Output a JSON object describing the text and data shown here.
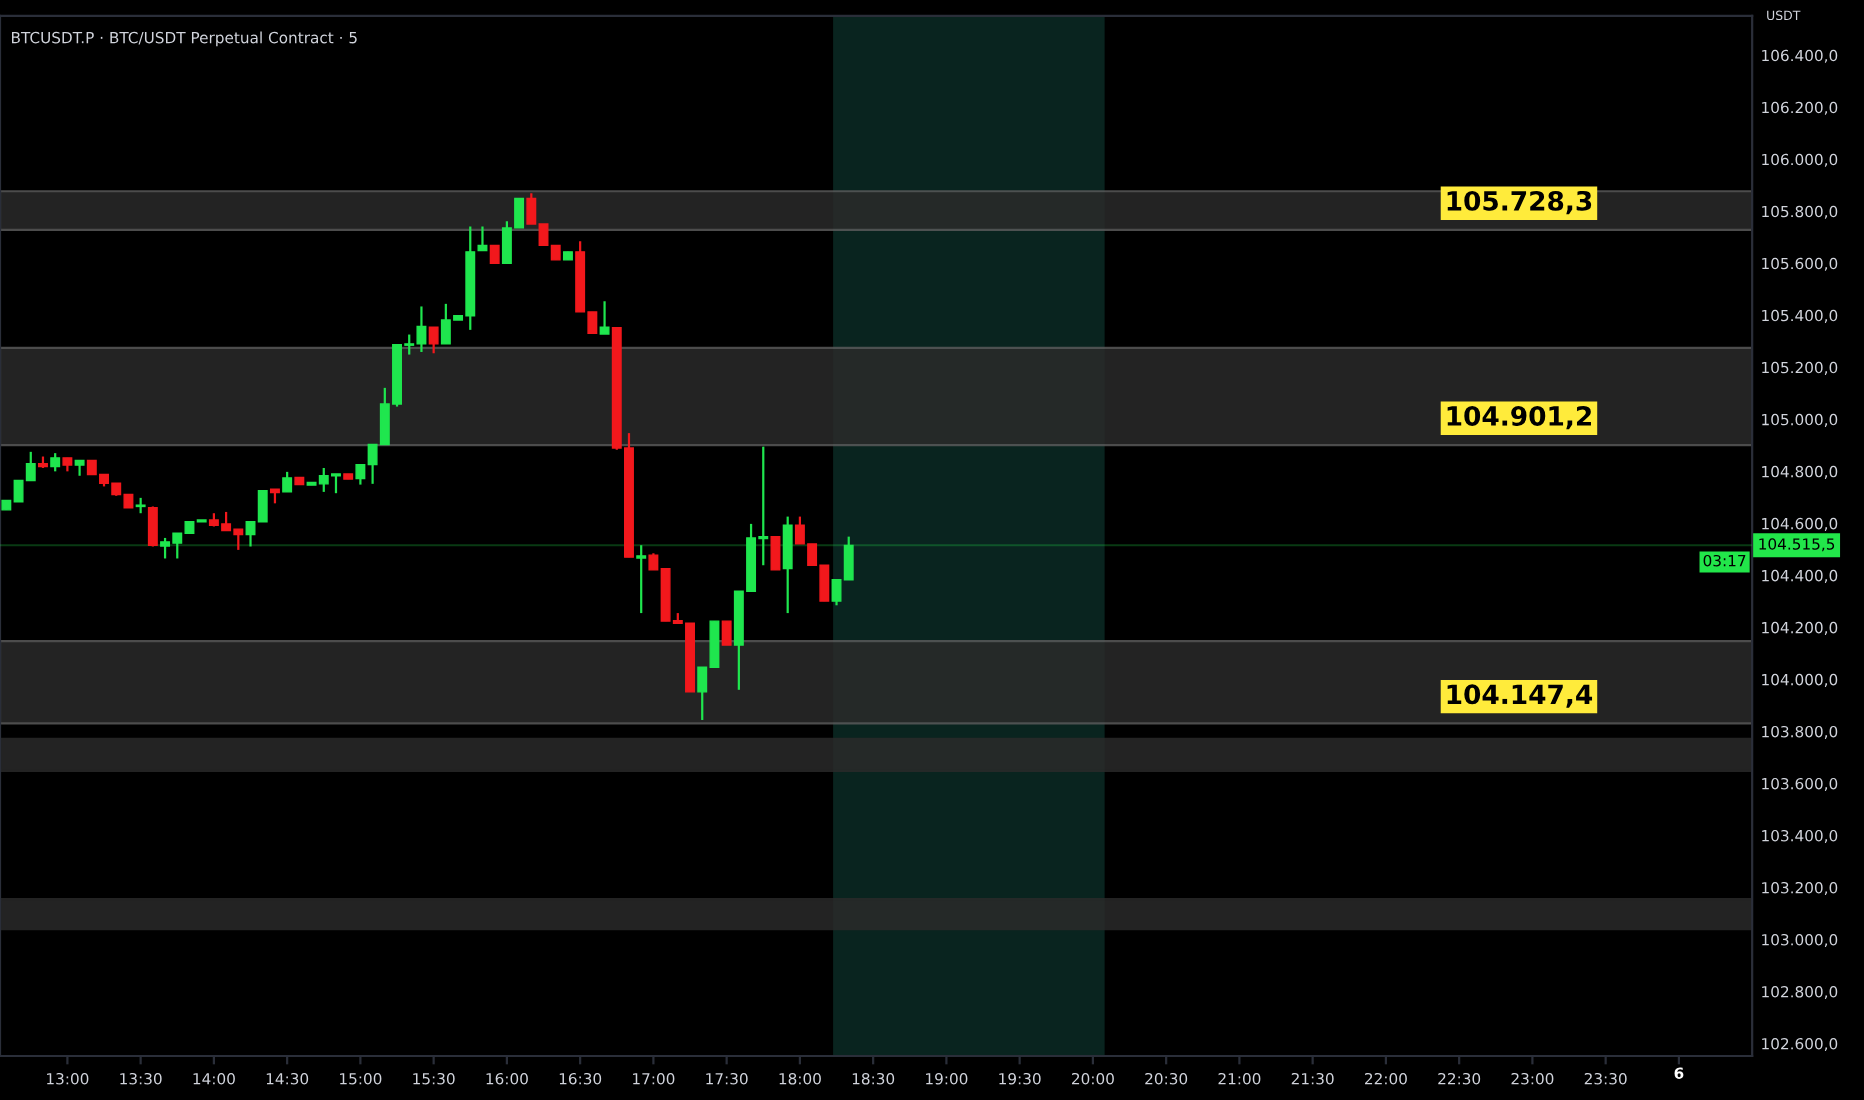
{
  "chart_data": {
    "type": "candlestick",
    "title": "BTCUSDT.P · BTC/USDT Perpetual Contract · 5",
    "x": [
      12.5833,
      12.6667,
      12.75,
      12.8333,
      12.9167,
      13,
      13.0833,
      13.1667,
      13.25,
      13.3333,
      13.4167,
      13.5,
      13.5833,
      13.6667,
      13.75,
      13.8333,
      13.9167,
      14,
      14.0833,
      14.1667,
      14.25,
      14.3333,
      14.4167,
      14.5,
      14.5833,
      14.6667,
      14.75,
      14.8333,
      14.9167,
      15,
      15.0833,
      15.1667,
      15.25,
      15.3333,
      15.4167,
      15.5,
      15.5833,
      15.6667,
      15.75,
      15.8333,
      15.9167,
      16,
      16.0833,
      16.1667,
      16.25,
      16.3333,
      16.4167,
      16.5,
      16.5833,
      16.6667,
      16.75,
      16.8333,
      16.9167,
      17,
      17.0833,
      17.1667,
      17.25,
      17.3333,
      17.4167,
      17.5,
      17.5833,
      17.6667,
      17.75,
      17.8333,
      17.9167,
      18,
      18.0833,
      18.1667,
      18.25,
      18.3333
    ],
    "ohlc": [
      [
        104652,
        104688,
        104652,
        104688
      ],
      [
        104683,
        104765,
        104683,
        104765
      ],
      [
        104765,
        104875,
        104765,
        104829
      ],
      [
        104829,
        104857,
        104813,
        104818
      ],
      [
        104818,
        104870,
        104800,
        104852
      ],
      [
        104852,
        104852,
        104800,
        104824
      ],
      [
        104824,
        104842,
        104783,
        104842
      ],
      [
        104842,
        104842,
        104788,
        104788
      ],
      [
        104788,
        104788,
        104742,
        104754
      ],
      [
        104754,
        104754,
        104706,
        104711
      ],
      [
        104711,
        104711,
        104660,
        104660
      ],
      [
        104665,
        104698,
        104639,
        104670
      ],
      [
        104660,
        104665,
        104511,
        104516
      ],
      [
        104513,
        104544,
        104465,
        104529
      ],
      [
        104524,
        104562,
        104465,
        104562
      ],
      [
        104562,
        104606,
        104562,
        104606
      ],
      [
        104606,
        104613,
        104606,
        104613
      ],
      [
        104613,
        104639,
        104588,
        104593
      ],
      [
        104598,
        104644,
        104572,
        104572
      ],
      [
        104578,
        104578,
        104498,
        104557
      ],
      [
        104557,
        104606,
        104511,
        104606
      ],
      [
        104606,
        104726,
        104606,
        104726
      ],
      [
        104731,
        104731,
        104677,
        104718
      ],
      [
        104721,
        104798,
        104721,
        104775
      ],
      [
        104777,
        104777,
        104749,
        104749
      ],
      [
        104747,
        104757,
        104747,
        104757
      ],
      [
        104752,
        104813,
        104721,
        104783
      ],
      [
        104783,
        104790,
        104716,
        104790
      ],
      [
        104790,
        104790,
        104770,
        104770
      ],
      [
        104772,
        104826,
        104749,
        104826
      ],
      [
        104826,
        104903,
        104752,
        104903
      ],
      [
        104903,
        105121,
        104903,
        105059
      ],
      [
        105059,
        105287,
        105049,
        105287
      ],
      [
        105285,
        105326,
        105249,
        105290
      ],
      [
        105290,
        105434,
        105259,
        105357
      ],
      [
        105354,
        105354,
        105254,
        105290
      ],
      [
        105290,
        105444,
        105290,
        105382
      ],
      [
        105382,
        105398,
        105382,
        105398
      ],
      [
        105398,
        105741,
        105344,
        105644
      ],
      [
        105649,
        105741,
        105649,
        105669
      ],
      [
        105669,
        105669,
        105600,
        105600
      ],
      [
        105600,
        105762,
        105600,
        105736
      ],
      [
        105736,
        105849,
        105736,
        105849
      ],
      [
        105849,
        105869,
        105751,
        105751
      ],
      [
        105751,
        105751,
        105669,
        105669
      ],
      [
        105669,
        105669,
        105613,
        105613
      ],
      [
        105613,
        105644,
        105613,
        105644
      ],
      [
        105644,
        105685,
        105413,
        105413
      ],
      [
        105413,
        105413,
        105331,
        105331
      ],
      [
        105328,
        105454,
        105328,
        105354
      ],
      [
        105352,
        105352,
        104883,
        104890
      ],
      [
        104890,
        104947,
        104470,
        104470
      ],
      [
        104467,
        104516,
        104255,
        104475
      ],
      [
        104478,
        104485,
        104421,
        104421
      ],
      [
        104426,
        104426,
        104224,
        104224
      ],
      [
        104226,
        104255,
        104216,
        104216
      ],
      [
        104216,
        104216,
        103952,
        103952
      ],
      [
        103952,
        104047,
        103844,
        104047
      ],
      [
        104047,
        104224,
        104047,
        104224
      ],
      [
        104224,
        104224,
        104132,
        104132
      ],
      [
        104132,
        104339,
        103960,
        104339
      ],
      [
        104339,
        104598,
        104339,
        104544
      ],
      [
        104542,
        104895,
        104439,
        104549
      ],
      [
        104549,
        104549,
        104421,
        104421
      ],
      [
        104426,
        104626,
        104255,
        104593
      ],
      [
        104593,
        104626,
        104521,
        104521
      ],
      [
        104521,
        104521,
        104439,
        104439
      ],
      [
        104439,
        104439,
        104301,
        104301
      ],
      [
        104301,
        104383,
        104285,
        104383
      ],
      [
        104383,
        104549,
        104383,
        104515.5
      ]
    ],
    "colors": [
      "#1fe64e",
      "#1fe64e",
      "#1fe64e",
      "#f2181c",
      "#1fe64e",
      "#f2181c",
      "#1fe64e",
      "#f2181c",
      "#f2181c",
      "#f2181c",
      "#f2181c",
      "#1fe64e",
      "#f2181c",
      "#1fe64e",
      "#1fe64e",
      "#1fe64e",
      "#1fe64e",
      "#f2181c",
      "#f2181c",
      "#f2181c",
      "#1fe64e",
      "#1fe64e",
      "#f2181c",
      "#1fe64e",
      "#f2181c",
      "#1fe64e",
      "#1fe64e",
      "#1fe64e",
      "#f2181c",
      "#1fe64e",
      "#1fe64e",
      "#1fe64e",
      "#1fe64e",
      "#1fe64e",
      "#1fe64e",
      "#f2181c",
      "#1fe64e",
      "#1fe64e",
      "#1fe64e",
      "#1fe64e",
      "#f2181c",
      "#1fe64e",
      "#1fe64e",
      "#f2181c",
      "#f2181c",
      "#f2181c",
      "#1fe64e",
      "#f2181c",
      "#f2181c",
      "#1fe64e",
      "#f2181c",
      "#f2181c",
      "#1fe64e",
      "#f2181c",
      "#f2181c",
      "#f2181c",
      "#f2181c",
      "#1fe64e",
      "#1fe64e",
      "#f2181c",
      "#1fe64e",
      "#1fe64e",
      "#1fe64e",
      "#f2181c",
      "#1fe64e",
      "#f2181c",
      "#f2181c",
      "#f2181c",
      "#1fe64e",
      "#1fe64e"
    ],
    "xlim": [
      12.54,
      24.5
    ],
    "xticks": [
      {
        "value": 13,
        "label": "13:00"
      },
      {
        "value": 13.5,
        "label": "13:30"
      },
      {
        "value": 14,
        "label": "14:00"
      },
      {
        "value": 14.5,
        "label": "14:30"
      },
      {
        "value": 15,
        "label": "15:00"
      },
      {
        "value": 15.5,
        "label": "15:30"
      },
      {
        "value": 16,
        "label": "16:00"
      },
      {
        "value": 16.5,
        "label": "16:30"
      },
      {
        "value": 17,
        "label": "17:00"
      },
      {
        "value": 17.5,
        "label": "17:30"
      },
      {
        "value": 18,
        "label": "18:00"
      },
      {
        "value": 18.5,
        "label": "18:30"
      },
      {
        "value": 19,
        "label": "19:00"
      },
      {
        "value": 19.5,
        "label": "19:30"
      },
      {
        "value": 20,
        "label": "20:00"
      },
      {
        "value": 20.5,
        "label": "20:30"
      },
      {
        "value": 21,
        "label": "21:00"
      },
      {
        "value": 21.5,
        "label": "21:30"
      },
      {
        "value": 22,
        "label": "22:00"
      },
      {
        "value": 22.5,
        "label": "22:30"
      },
      {
        "value": 23,
        "label": "23:00"
      },
      {
        "value": 23.5,
        "label": "23:30"
      },
      {
        "value": 24,
        "label": null
      }
    ],
    "ylim": [
      102552,
      106551
    ],
    "yticks": [
      {
        "value": 102600,
        "label": "102.600,0"
      },
      {
        "value": 102800,
        "label": "102.800,0"
      },
      {
        "value": 103000,
        "label": "103.000,0"
      },
      {
        "value": 103200,
        "label": "103.200,0"
      },
      {
        "value": 103400,
        "label": "103.400,0"
      },
      {
        "value": 103600,
        "label": "103.600,0"
      },
      {
        "value": 103800,
        "label": "103.800,0"
      },
      {
        "value": 104000,
        "label": "104.000,0"
      },
      {
        "value": 104200,
        "label": "104.200,0"
      },
      {
        "value": 104400,
        "label": "104.400,0"
      },
      {
        "value": 104600,
        "label": "104.600,0"
      },
      {
        "value": 104800,
        "label": "104.800,0"
      },
      {
        "value": 105000,
        "label": "105.000,0"
      },
      {
        "value": 105200,
        "label": "105.200,0"
      },
      {
        "value": 105400,
        "label": "105.400,0"
      },
      {
        "value": 105600,
        "label": "105.600,0"
      },
      {
        "value": 105800,
        "label": "105.800,0"
      },
      {
        "value": 106000,
        "label": "106.000,0"
      },
      {
        "value": 106200,
        "label": "106.200,0"
      },
      {
        "value": 106400,
        "label": "106.400,0"
      }
    ],
    "bands": [
      {
        "axis": "y",
        "from": 105728.3,
        "to": 105877,
        "label": "105.728,3",
        "color": "#2a2a2a"
      },
      {
        "axis": "y",
        "from": 104901.2,
        "to": 105275,
        "label": "104.901,2",
        "color": "#2a2a2a"
      },
      {
        "axis": "y",
        "from": 103831,
        "to": 104147.4,
        "label": "104.147,4",
        "color": "#2a2a2a"
      },
      {
        "axis": "y",
        "from": 103648,
        "to": 103771,
        "color": "#2a2a2a"
      },
      {
        "axis": "y",
        "from": 103040,
        "to": 103155,
        "color": "#2a2a2a"
      },
      {
        "axis": "x",
        "from": 18.2267,
        "to": 20.08,
        "color": "#0a2a24"
      }
    ],
    "ref_lines": [
      {
        "axis": "y",
        "value": 104515.5,
        "label": "104.515,5",
        "color": "#22e64a"
      }
    ],
    "annotations": [
      "USDT",
      "03:17",
      "6"
    ]
  }
}
